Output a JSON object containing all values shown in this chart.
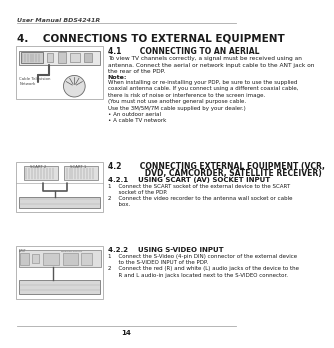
{
  "page_bg": "#ffffff",
  "header_text": "User Manual BDS4241R",
  "footer_text": "14",
  "section_title": "4.    CONNECTIONS TO EXTERNAL EQUIPMENT",
  "s41_title": "4.1       CONNECTING TO AN AERIAL",
  "s41_body": "To view TV channels correctly, a signal must be received using an\nantenna. Connect the aerial or network input cable to the ANT jack on\nthe rear of the PDP.",
  "s41_note_label": "Note:",
  "s41_note_body": "When installing or re-installing your PDP, be sure to use the supplied\ncoaxial antenna cable. If you connect using a different coaxial cable,\nthere is risk of noise or interference to the screen image.\n(You must not use another general purpose cable.\nUse the 3M/5M/7M cable supplied by your dealer.)\n• An outdoor aerial\n• A cable TV network",
  "s42_title_line1": "4.2       CONNECTING EXTERNAL EQUIPMENT (VCR,",
  "s42_title_line2": "              DVD, CAMCORDER, SATELLITE RECEIVER)",
  "s421_title": "4.2.1    USING SCART (AV) SOCKET INPUT",
  "s421_body_1": "1    Connect the SCART socket of the external device to the SCART\n      socket of the PDP.",
  "s421_body_2": "2    Connect the video recorder to the antenna wall socket or cable\n      box.",
  "s422_title": "4.2.2    USING S-VIDEO INPUT",
  "s422_body_1": "1    Connect the S-Video (4-pin DIN) connector of the external device\n      to the S-VIDEO INPUT of the PDP.",
  "s422_body_2": "2    Connect the red (R) and white (L) audio jacks of the device to the\n      R and L audio-in jacks located next to the S-VIDEO connector.",
  "text_color": "#1a1a1a",
  "line_color": "#aaaaaa",
  "img_border": "#aaaaaa",
  "img_bg": "#f5f5f5"
}
